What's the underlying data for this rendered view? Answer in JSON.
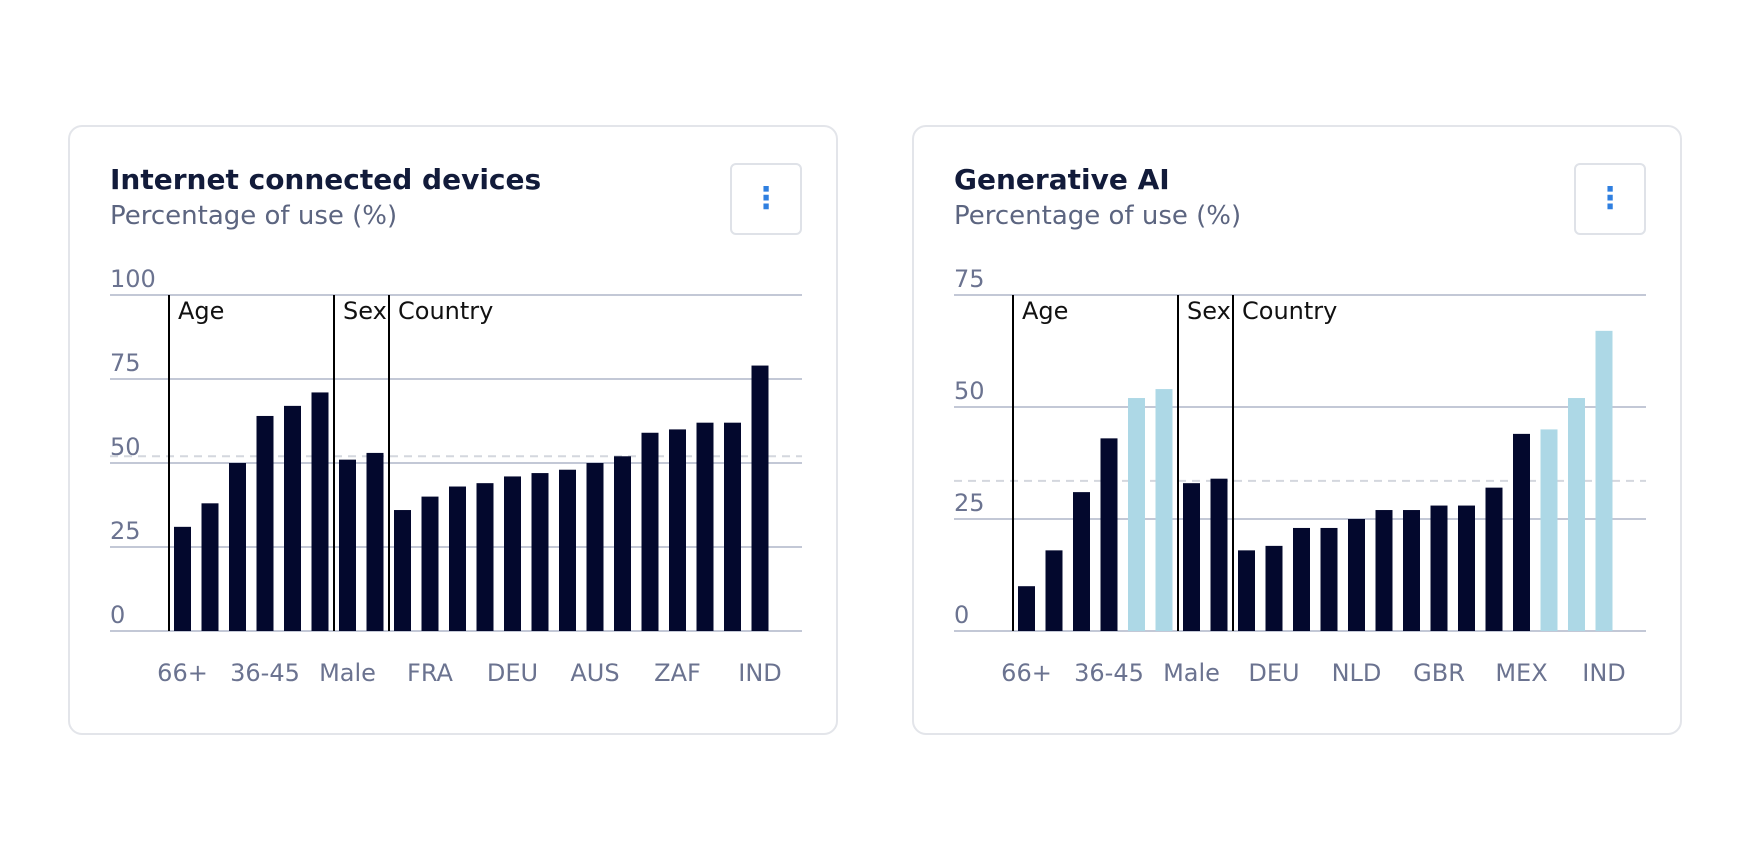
{
  "colors": {
    "bar_primary": "#03082d",
    "bar_highlight": "#add8e6",
    "grid": "#c3c8d6",
    "reference_line": "#d4d7de",
    "separator": "#000000"
  },
  "cards": [
    {
      "title": "Internet connected devices",
      "subtitle": "Percentage of use (%)",
      "menu_icon": "vertical-ellipsis-icon",
      "menu_glyph": "⋮"
    },
    {
      "title": "Generative AI",
      "subtitle": "Percentage of use (%)",
      "menu_icon": "vertical-ellipsis-icon",
      "menu_glyph": "⋮"
    }
  ],
  "chart_data": [
    {
      "type": "bar",
      "title": "Internet connected devices",
      "ylabel": "Percentage of use (%)",
      "ylim": [
        0,
        100
      ],
      "yticks": [
        0,
        25,
        50,
        75,
        100
      ],
      "grid": true,
      "reference_value": 52,
      "values": [
        31,
        38,
        50,
        64,
        67,
        71,
        51,
        53,
        36,
        40,
        43,
        44,
        46,
        47,
        48,
        50,
        52,
        59,
        60,
        62,
        62,
        79
      ],
      "highlighted": [
        false,
        false,
        false,
        false,
        false,
        false,
        false,
        false,
        false,
        false,
        false,
        false,
        false,
        false,
        false,
        false,
        false,
        false,
        false,
        false,
        false,
        false
      ],
      "x_labels": [
        {
          "bar": 0,
          "text": "66+"
        },
        {
          "bar": 3,
          "text": "36-45"
        },
        {
          "bar": 6,
          "text": "Male"
        },
        {
          "bar": 9,
          "text": "FRA"
        },
        {
          "bar": 12,
          "text": "DEU"
        },
        {
          "bar": 15,
          "text": "AUS"
        },
        {
          "bar": 18,
          "text": "ZAF"
        },
        {
          "bar": 21,
          "text": "IND"
        }
      ],
      "groups": [
        {
          "label": "Age",
          "start": 0
        },
        {
          "label": "Sex",
          "start": 6
        },
        {
          "label": "Country",
          "start": 8
        }
      ]
    },
    {
      "type": "bar",
      "title": "Generative AI",
      "ylabel": "Percentage of use (%)",
      "ylim": [
        0,
        75
      ],
      "yticks": [
        0,
        25,
        50,
        75
      ],
      "grid": true,
      "reference_value": 33.5,
      "values": [
        10,
        18,
        31,
        43,
        52,
        54,
        33,
        34,
        18,
        19,
        23,
        23,
        25,
        27,
        27,
        28,
        28,
        32,
        44,
        45,
        52,
        67
      ],
      "highlighted": [
        false,
        false,
        false,
        false,
        true,
        true,
        false,
        false,
        false,
        false,
        false,
        false,
        false,
        false,
        false,
        false,
        false,
        false,
        false,
        true,
        true,
        true
      ],
      "x_labels": [
        {
          "bar": 0,
          "text": "66+"
        },
        {
          "bar": 3,
          "text": "36-45"
        },
        {
          "bar": 6,
          "text": "Male"
        },
        {
          "bar": 9,
          "text": "DEU"
        },
        {
          "bar": 12,
          "text": "NLD"
        },
        {
          "bar": 15,
          "text": "GBR"
        },
        {
          "bar": 18,
          "text": "MEX"
        },
        {
          "bar": 21,
          "text": "IND"
        }
      ],
      "groups": [
        {
          "label": "Age",
          "start": 0
        },
        {
          "label": "Sex",
          "start": 6
        },
        {
          "label": "Country",
          "start": 8
        }
      ]
    }
  ]
}
